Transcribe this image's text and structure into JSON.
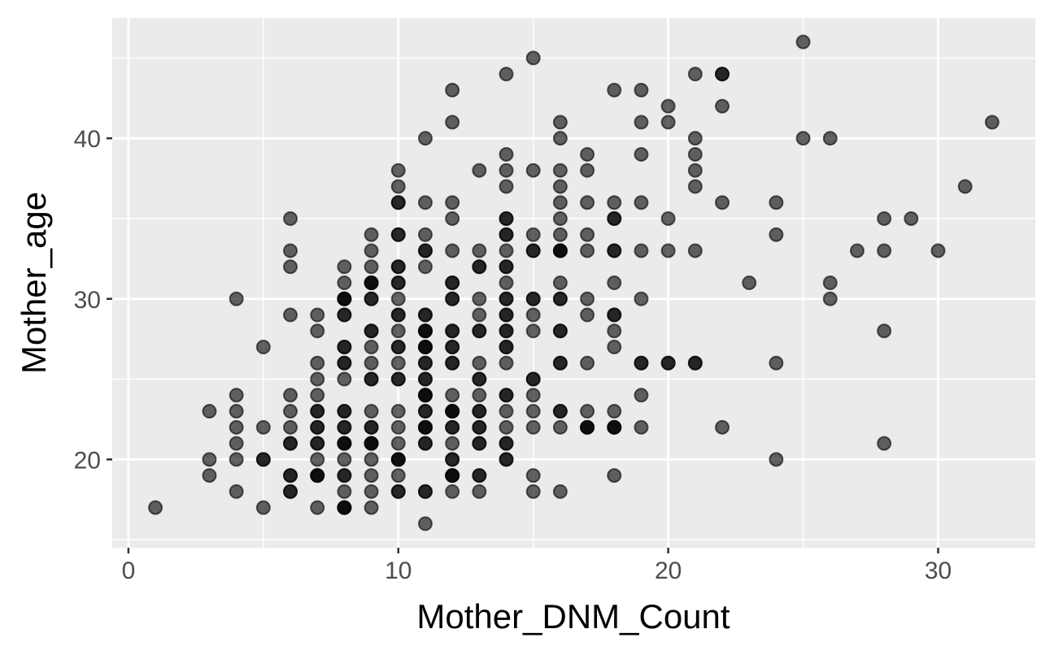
{
  "chart_data": {
    "type": "scatter",
    "title": "",
    "xlabel": "Mother_DNM_Count",
    "ylabel": "Mother_age",
    "xlim": [
      -0.6,
      33.6
    ],
    "ylim": [
      14.5,
      47.5
    ],
    "x_ticks": [
      0,
      10,
      20,
      30
    ],
    "y_ticks": [
      20,
      30,
      40
    ],
    "x_tick_labels": [
      "0",
      "10",
      "20",
      "30"
    ],
    "y_tick_labels": [
      "20",
      "30",
      "40"
    ],
    "grid": true,
    "legend": "none",
    "colors": {
      "panel_background": "#ebebeb",
      "grid": "#ffffff",
      "point_fill": "#000000",
      "point_opacity": 0.6
    },
    "points": [
      {
        "x": 1,
        "y": 17
      },
      {
        "x": 3,
        "y": 19
      },
      {
        "x": 3,
        "y": 20
      },
      {
        "x": 3,
        "y": 23
      },
      {
        "x": 4,
        "y": 18
      },
      {
        "x": 4,
        "y": 20
      },
      {
        "x": 4,
        "y": 21
      },
      {
        "x": 4,
        "y": 22
      },
      {
        "x": 4,
        "y": 23
      },
      {
        "x": 4,
        "y": 24
      },
      {
        "x": 4,
        "y": 30
      },
      {
        "x": 5,
        "y": 17
      },
      {
        "x": 5,
        "y": 20
      },
      {
        "x": 5,
        "y": 20
      },
      {
        "x": 5,
        "y": 22
      },
      {
        "x": 5,
        "y": 27
      },
      {
        "x": 6,
        "y": 18
      },
      {
        "x": 6,
        "y": 18
      },
      {
        "x": 6,
        "y": 19
      },
      {
        "x": 6,
        "y": 19
      },
      {
        "x": 6,
        "y": 21
      },
      {
        "x": 6,
        "y": 21
      },
      {
        "x": 6,
        "y": 22
      },
      {
        "x": 6,
        "y": 23
      },
      {
        "x": 6,
        "y": 24
      },
      {
        "x": 6,
        "y": 29
      },
      {
        "x": 6,
        "y": 32
      },
      {
        "x": 6,
        "y": 33
      },
      {
        "x": 6,
        "y": 35
      },
      {
        "x": 7,
        "y": 17
      },
      {
        "x": 7,
        "y": 19
      },
      {
        "x": 7,
        "y": 19
      },
      {
        "x": 7,
        "y": 19
      },
      {
        "x": 7,
        "y": 20
      },
      {
        "x": 7,
        "y": 21
      },
      {
        "x": 7,
        "y": 21
      },
      {
        "x": 7,
        "y": 22
      },
      {
        "x": 7,
        "y": 22
      },
      {
        "x": 7,
        "y": 23
      },
      {
        "x": 7,
        "y": 23
      },
      {
        "x": 7,
        "y": 24
      },
      {
        "x": 7,
        "y": 25
      },
      {
        "x": 7,
        "y": 26
      },
      {
        "x": 7,
        "y": 28
      },
      {
        "x": 7,
        "y": 29
      },
      {
        "x": 8,
        "y": 17
      },
      {
        "x": 8,
        "y": 17
      },
      {
        "x": 8,
        "y": 17
      },
      {
        "x": 8,
        "y": 18
      },
      {
        "x": 8,
        "y": 19
      },
      {
        "x": 8,
        "y": 19
      },
      {
        "x": 8,
        "y": 20
      },
      {
        "x": 8,
        "y": 21
      },
      {
        "x": 8,
        "y": 21
      },
      {
        "x": 8,
        "y": 21
      },
      {
        "x": 8,
        "y": 22
      },
      {
        "x": 8,
        "y": 22
      },
      {
        "x": 8,
        "y": 23
      },
      {
        "x": 8,
        "y": 23
      },
      {
        "x": 8,
        "y": 25
      },
      {
        "x": 8,
        "y": 26
      },
      {
        "x": 8,
        "y": 26
      },
      {
        "x": 8,
        "y": 27
      },
      {
        "x": 8,
        "y": 27
      },
      {
        "x": 8,
        "y": 29
      },
      {
        "x": 8,
        "y": 29
      },
      {
        "x": 8,
        "y": 30
      },
      {
        "x": 8,
        "y": 30
      },
      {
        "x": 8,
        "y": 30
      },
      {
        "x": 8,
        "y": 31
      },
      {
        "x": 8,
        "y": 32
      },
      {
        "x": 9,
        "y": 17
      },
      {
        "x": 9,
        "y": 18
      },
      {
        "x": 9,
        "y": 19
      },
      {
        "x": 9,
        "y": 20
      },
      {
        "x": 9,
        "y": 21
      },
      {
        "x": 9,
        "y": 21
      },
      {
        "x": 9,
        "y": 21
      },
      {
        "x": 9,
        "y": 22
      },
      {
        "x": 9,
        "y": 22
      },
      {
        "x": 9,
        "y": 23
      },
      {
        "x": 9,
        "y": 25
      },
      {
        "x": 9,
        "y": 25
      },
      {
        "x": 9,
        "y": 26
      },
      {
        "x": 9,
        "y": 27
      },
      {
        "x": 9,
        "y": 28
      },
      {
        "x": 9,
        "y": 28
      },
      {
        "x": 9,
        "y": 30
      },
      {
        "x": 9,
        "y": 30
      },
      {
        "x": 9,
        "y": 31
      },
      {
        "x": 9,
        "y": 31
      },
      {
        "x": 9,
        "y": 31
      },
      {
        "x": 9,
        "y": 32
      },
      {
        "x": 9,
        "y": 33
      },
      {
        "x": 9,
        "y": 34
      },
      {
        "x": 10,
        "y": 18
      },
      {
        "x": 10,
        "y": 18
      },
      {
        "x": 10,
        "y": 19
      },
      {
        "x": 10,
        "y": 20
      },
      {
        "x": 10,
        "y": 20
      },
      {
        "x": 10,
        "y": 20
      },
      {
        "x": 10,
        "y": 21
      },
      {
        "x": 10,
        "y": 22
      },
      {
        "x": 10,
        "y": 23
      },
      {
        "x": 10,
        "y": 25
      },
      {
        "x": 10,
        "y": 25
      },
      {
        "x": 10,
        "y": 26
      },
      {
        "x": 10,
        "y": 27
      },
      {
        "x": 10,
        "y": 27
      },
      {
        "x": 10,
        "y": 28
      },
      {
        "x": 10,
        "y": 29
      },
      {
        "x": 10,
        "y": 29
      },
      {
        "x": 10,
        "y": 30
      },
      {
        "x": 10,
        "y": 31
      },
      {
        "x": 10,
        "y": 31
      },
      {
        "x": 10,
        "y": 32
      },
      {
        "x": 10,
        "y": 32
      },
      {
        "x": 10,
        "y": 34
      },
      {
        "x": 10,
        "y": 34
      },
      {
        "x": 10,
        "y": 36
      },
      {
        "x": 10,
        "y": 36
      },
      {
        "x": 10,
        "y": 37
      },
      {
        "x": 10,
        "y": 38
      },
      {
        "x": 11,
        "y": 16
      },
      {
        "x": 11,
        "y": 18
      },
      {
        "x": 11,
        "y": 18
      },
      {
        "x": 11,
        "y": 21
      },
      {
        "x": 11,
        "y": 21
      },
      {
        "x": 11,
        "y": 22
      },
      {
        "x": 11,
        "y": 22
      },
      {
        "x": 11,
        "y": 22
      },
      {
        "x": 11,
        "y": 23
      },
      {
        "x": 11,
        "y": 23
      },
      {
        "x": 11,
        "y": 24
      },
      {
        "x": 11,
        "y": 24
      },
      {
        "x": 11,
        "y": 24
      },
      {
        "x": 11,
        "y": 25
      },
      {
        "x": 11,
        "y": 25
      },
      {
        "x": 11,
        "y": 26
      },
      {
        "x": 11,
        "y": 26
      },
      {
        "x": 11,
        "y": 27
      },
      {
        "x": 11,
        "y": 27
      },
      {
        "x": 11,
        "y": 27
      },
      {
        "x": 11,
        "y": 28
      },
      {
        "x": 11,
        "y": 28
      },
      {
        "x": 11,
        "y": 28
      },
      {
        "x": 11,
        "y": 29
      },
      {
        "x": 11,
        "y": 29
      },
      {
        "x": 11,
        "y": 32
      },
      {
        "x": 11,
        "y": 33
      },
      {
        "x": 11,
        "y": 33
      },
      {
        "x": 11,
        "y": 34
      },
      {
        "x": 11,
        "y": 36
      },
      {
        "x": 11,
        "y": 40
      },
      {
        "x": 12,
        "y": 18
      },
      {
        "x": 12,
        "y": 19
      },
      {
        "x": 12,
        "y": 19
      },
      {
        "x": 12,
        "y": 19
      },
      {
        "x": 12,
        "y": 20
      },
      {
        "x": 12,
        "y": 20
      },
      {
        "x": 12,
        "y": 21
      },
      {
        "x": 12,
        "y": 22
      },
      {
        "x": 12,
        "y": 22
      },
      {
        "x": 12,
        "y": 23
      },
      {
        "x": 12,
        "y": 23
      },
      {
        "x": 12,
        "y": 23
      },
      {
        "x": 12,
        "y": 24
      },
      {
        "x": 12,
        "y": 26
      },
      {
        "x": 12,
        "y": 26
      },
      {
        "x": 12,
        "y": 27
      },
      {
        "x": 12,
        "y": 27
      },
      {
        "x": 12,
        "y": 28
      },
      {
        "x": 12,
        "y": 28
      },
      {
        "x": 12,
        "y": 30
      },
      {
        "x": 12,
        "y": 30
      },
      {
        "x": 12,
        "y": 31
      },
      {
        "x": 12,
        "y": 31
      },
      {
        "x": 12,
        "y": 33
      },
      {
        "x": 12,
        "y": 35
      },
      {
        "x": 12,
        "y": 36
      },
      {
        "x": 12,
        "y": 41
      },
      {
        "x": 12,
        "y": 43
      },
      {
        "x": 13,
        "y": 18
      },
      {
        "x": 13,
        "y": 19
      },
      {
        "x": 13,
        "y": 19
      },
      {
        "x": 13,
        "y": 21
      },
      {
        "x": 13,
        "y": 21
      },
      {
        "x": 13,
        "y": 22
      },
      {
        "x": 13,
        "y": 22
      },
      {
        "x": 13,
        "y": 23
      },
      {
        "x": 13,
        "y": 23
      },
      {
        "x": 13,
        "y": 24
      },
      {
        "x": 13,
        "y": 25
      },
      {
        "x": 13,
        "y": 25
      },
      {
        "x": 13,
        "y": 26
      },
      {
        "x": 13,
        "y": 28
      },
      {
        "x": 13,
        "y": 28
      },
      {
        "x": 13,
        "y": 29
      },
      {
        "x": 13,
        "y": 30
      },
      {
        "x": 13,
        "y": 32
      },
      {
        "x": 13,
        "y": 32
      },
      {
        "x": 13,
        "y": 33
      },
      {
        "x": 13,
        "y": 38
      },
      {
        "x": 14,
        "y": 20
      },
      {
        "x": 14,
        "y": 20
      },
      {
        "x": 14,
        "y": 21
      },
      {
        "x": 14,
        "y": 21
      },
      {
        "x": 14,
        "y": 22
      },
      {
        "x": 14,
        "y": 23
      },
      {
        "x": 14,
        "y": 24
      },
      {
        "x": 14,
        "y": 24
      },
      {
        "x": 14,
        "y": 26
      },
      {
        "x": 14,
        "y": 27
      },
      {
        "x": 14,
        "y": 27
      },
      {
        "x": 14,
        "y": 28
      },
      {
        "x": 14,
        "y": 28
      },
      {
        "x": 14,
        "y": 29
      },
      {
        "x": 14,
        "y": 29
      },
      {
        "x": 14,
        "y": 30
      },
      {
        "x": 14,
        "y": 30
      },
      {
        "x": 14,
        "y": 31
      },
      {
        "x": 14,
        "y": 32
      },
      {
        "x": 14,
        "y": 32
      },
      {
        "x": 14,
        "y": 33
      },
      {
        "x": 14,
        "y": 34
      },
      {
        "x": 14,
        "y": 34
      },
      {
        "x": 14,
        "y": 35
      },
      {
        "x": 14,
        "y": 35
      },
      {
        "x": 14,
        "y": 37
      },
      {
        "x": 14,
        "y": 38
      },
      {
        "x": 14,
        "y": 39
      },
      {
        "x": 14,
        "y": 44
      },
      {
        "x": 15,
        "y": 18
      },
      {
        "x": 15,
        "y": 19
      },
      {
        "x": 15,
        "y": 22
      },
      {
        "x": 15,
        "y": 23
      },
      {
        "x": 15,
        "y": 24
      },
      {
        "x": 15,
        "y": 25
      },
      {
        "x": 15,
        "y": 25
      },
      {
        "x": 15,
        "y": 28
      },
      {
        "x": 15,
        "y": 29
      },
      {
        "x": 15,
        "y": 30
      },
      {
        "x": 15,
        "y": 30
      },
      {
        "x": 15,
        "y": 33
      },
      {
        "x": 15,
        "y": 33
      },
      {
        "x": 15,
        "y": 34
      },
      {
        "x": 15,
        "y": 38
      },
      {
        "x": 15,
        "y": 45
      },
      {
        "x": 16,
        "y": 18
      },
      {
        "x": 16,
        "y": 22
      },
      {
        "x": 16,
        "y": 23
      },
      {
        "x": 16,
        "y": 23
      },
      {
        "x": 16,
        "y": 26
      },
      {
        "x": 16,
        "y": 26
      },
      {
        "x": 16,
        "y": 28
      },
      {
        "x": 16,
        "y": 28
      },
      {
        "x": 16,
        "y": 30
      },
      {
        "x": 16,
        "y": 30
      },
      {
        "x": 16,
        "y": 31
      },
      {
        "x": 16,
        "y": 33
      },
      {
        "x": 16,
        "y": 33
      },
      {
        "x": 16,
        "y": 33
      },
      {
        "x": 16,
        "y": 34
      },
      {
        "x": 16,
        "y": 35
      },
      {
        "x": 16,
        "y": 36
      },
      {
        "x": 16,
        "y": 37
      },
      {
        "x": 16,
        "y": 38
      },
      {
        "x": 16,
        "y": 40
      },
      {
        "x": 16,
        "y": 41
      },
      {
        "x": 17,
        "y": 22
      },
      {
        "x": 17,
        "y": 22
      },
      {
        "x": 17,
        "y": 22
      },
      {
        "x": 17,
        "y": 23
      },
      {
        "x": 17,
        "y": 26
      },
      {
        "x": 17,
        "y": 29
      },
      {
        "x": 17,
        "y": 30
      },
      {
        "x": 17,
        "y": 33
      },
      {
        "x": 17,
        "y": 34
      },
      {
        "x": 17,
        "y": 36
      },
      {
        "x": 17,
        "y": 38
      },
      {
        "x": 17,
        "y": 39
      },
      {
        "x": 18,
        "y": 19
      },
      {
        "x": 18,
        "y": 22
      },
      {
        "x": 18,
        "y": 22
      },
      {
        "x": 18,
        "y": 22
      },
      {
        "x": 18,
        "y": 23
      },
      {
        "x": 18,
        "y": 27
      },
      {
        "x": 18,
        "y": 28
      },
      {
        "x": 18,
        "y": 29
      },
      {
        "x": 18,
        "y": 29
      },
      {
        "x": 18,
        "y": 31
      },
      {
        "x": 18,
        "y": 33
      },
      {
        "x": 18,
        "y": 33
      },
      {
        "x": 18,
        "y": 35
      },
      {
        "x": 18,
        "y": 35
      },
      {
        "x": 18,
        "y": 36
      },
      {
        "x": 18,
        "y": 43
      },
      {
        "x": 19,
        "y": 22
      },
      {
        "x": 19,
        "y": 24
      },
      {
        "x": 19,
        "y": 26
      },
      {
        "x": 19,
        "y": 26
      },
      {
        "x": 19,
        "y": 30
      },
      {
        "x": 19,
        "y": 33
      },
      {
        "x": 19,
        "y": 36
      },
      {
        "x": 19,
        "y": 39
      },
      {
        "x": 19,
        "y": 41
      },
      {
        "x": 19,
        "y": 43
      },
      {
        "x": 20,
        "y": 26
      },
      {
        "x": 20,
        "y": 26
      },
      {
        "x": 20,
        "y": 33
      },
      {
        "x": 20,
        "y": 35
      },
      {
        "x": 20,
        "y": 41
      },
      {
        "x": 20,
        "y": 42
      },
      {
        "x": 21,
        "y": 26
      },
      {
        "x": 21,
        "y": 26
      },
      {
        "x": 21,
        "y": 33
      },
      {
        "x": 21,
        "y": 37
      },
      {
        "x": 21,
        "y": 38
      },
      {
        "x": 21,
        "y": 39
      },
      {
        "x": 21,
        "y": 40
      },
      {
        "x": 21,
        "y": 44
      },
      {
        "x": 22,
        "y": 22
      },
      {
        "x": 22,
        "y": 36
      },
      {
        "x": 22,
        "y": 42
      },
      {
        "x": 22,
        "y": 44
      },
      {
        "x": 22,
        "y": 44
      },
      {
        "x": 23,
        "y": 31
      },
      {
        "x": 24,
        "y": 20
      },
      {
        "x": 24,
        "y": 26
      },
      {
        "x": 24,
        "y": 34
      },
      {
        "x": 24,
        "y": 36
      },
      {
        "x": 25,
        "y": 40
      },
      {
        "x": 25,
        "y": 46
      },
      {
        "x": 26,
        "y": 30
      },
      {
        "x": 26,
        "y": 31
      },
      {
        "x": 26,
        "y": 40
      },
      {
        "x": 27,
        "y": 33
      },
      {
        "x": 28,
        "y": 21
      },
      {
        "x": 28,
        "y": 28
      },
      {
        "x": 28,
        "y": 33
      },
      {
        "x": 28,
        "y": 35
      },
      {
        "x": 29,
        "y": 35
      },
      {
        "x": 30,
        "y": 33
      },
      {
        "x": 31,
        "y": 37
      },
      {
        "x": 32,
        "y": 41
      }
    ]
  }
}
